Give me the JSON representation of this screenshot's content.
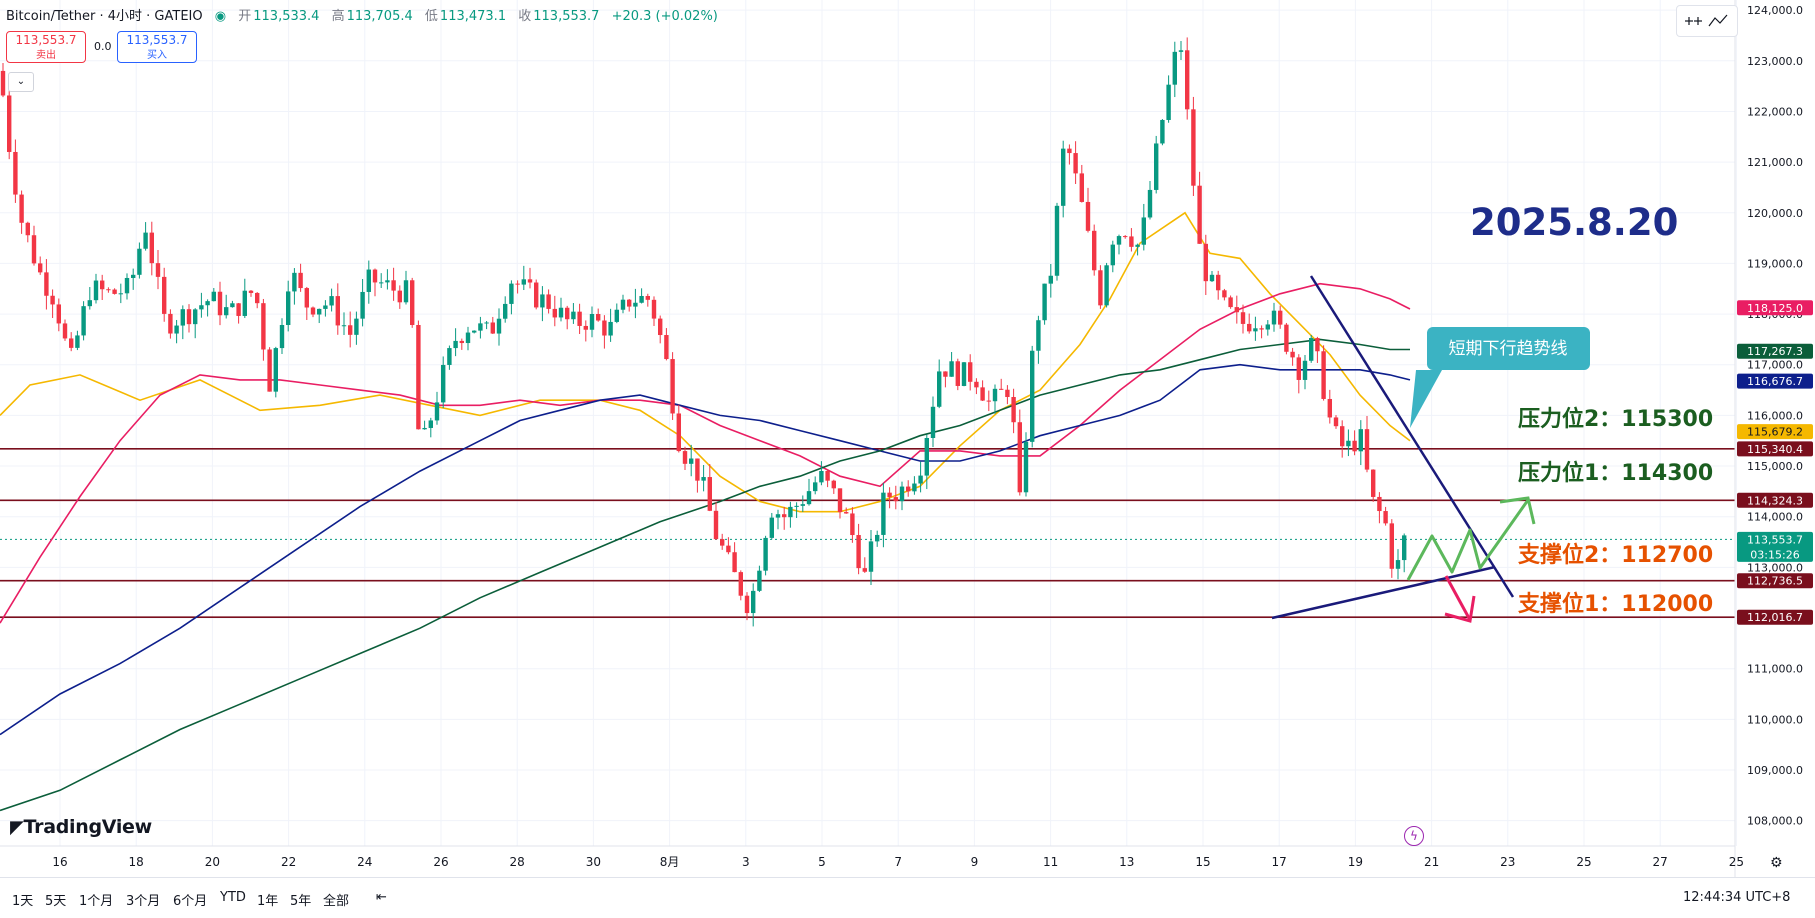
{
  "header": {
    "symbol": "Bitcoin/Tether · 4小时 · GATEIO",
    "open_label": "开",
    "open": "113,533.4",
    "high_label": "高",
    "high": "113,705.4",
    "low_label": "低",
    "low": "113,473.1",
    "close_label": "收",
    "close": "113,553.7",
    "change": "+20.3 (+0.02%)"
  },
  "trade": {
    "sell_price": "113,553.7",
    "sell_label": "卖出",
    "spread": "0.0",
    "buy_price": "113,553.7",
    "buy_label": "买入"
  },
  "branding": {
    "logo_text": "TradingView"
  },
  "timeframes": [
    "1天",
    "5天",
    "1个月",
    "3个月",
    "6个月",
    "YTD",
    "1年",
    "5年",
    "全部"
  ],
  "footer_time": "12:44:34 UTC+8",
  "colors": {
    "up": "#089981",
    "down": "#f23645",
    "ma_yellow": "#f5b800",
    "ma_red": "#e91e63",
    "ma_blue": "#0d1f8c",
    "ma_green": "#0b5e3a",
    "hline": "#7a0f1d",
    "trend": "#1a1a7a",
    "accent_title": "#1e2d8a",
    "resistance_text": "#1b5e20",
    "support_text": "#e65100",
    "callout": "#3bb3c3"
  },
  "chart_data": {
    "type": "candlestick",
    "y_axis": {
      "min": 107500,
      "max": 124200,
      "tick_labels": [
        "108,000.0",
        "109,000.0",
        "110,000.0",
        "111,000.0",
        "112,000.0",
        "113,000.0",
        "114,000.0",
        "115,000.0",
        "116,000.0",
        "117,000.0",
        "118,000.0",
        "119,000.0",
        "120,000.0",
        "121,000.0",
        "122,000.0",
        "123,000.0",
        "124,000.0"
      ],
      "tick_values": [
        108000,
        109000,
        110000,
        111000,
        112000,
        113000,
        114000,
        115000,
        116000,
        117000,
        118000,
        119000,
        120000,
        121000,
        122000,
        123000,
        124000
      ]
    },
    "x_axis": {
      "tick_labels": [
        "16",
        "18",
        "20",
        "22",
        "24",
        "26",
        "28",
        "30",
        "8月",
        "3",
        "5",
        "7",
        "9",
        "11",
        "13",
        "15",
        "17",
        "19",
        "21",
        "23",
        "25",
        "27",
        "25"
      ]
    },
    "title_annotation": "2025.8.20",
    "price_labels": [
      {
        "value": 118125.0,
        "text": "118,125.0",
        "color": "#e91e63"
      },
      {
        "value": 117267.3,
        "text": "117,267.3",
        "color": "#0b5e3a"
      },
      {
        "value": 116676.7,
        "text": "116,676.7",
        "color": "#0d1f8c"
      },
      {
        "value": 115679.2,
        "text": "115,679.2",
        "color": "#f5b800"
      },
      {
        "value": 115340.4,
        "text": "115,340.4",
        "color": "#7a0f1d"
      },
      {
        "value": 114324.3,
        "text": "114,324.3",
        "color": "#7a0f1d"
      },
      {
        "value": 113553.7,
        "text": "113,553.7",
        "color": "#089981"
      },
      {
        "value": 112736.5,
        "text": "112,736.5",
        "color": "#7a0f1d"
      },
      {
        "value": 112016.7,
        "text": "112,016.7",
        "color": "#7a0f1d"
      }
    ],
    "countdown": "03:15:26",
    "horizontal_levels": [
      115340.4,
      114324.3,
      112736.5,
      112016.7
    ],
    "level_annotations": [
      {
        "text": "压力位2：115300",
        "value": 115300,
        "kind": "resistance"
      },
      {
        "text": "压力位1：114300",
        "value": 114300,
        "kind": "resistance"
      },
      {
        "text": "支撑位2：112700",
        "value": 112700,
        "kind": "support"
      },
      {
        "text": "支撑位1：112000",
        "value": 112000,
        "kind": "support"
      }
    ],
    "callout_text": "短期下行趋势线",
    "ma_series": [
      {
        "color": "#f5b800",
        "points": [
          [
            0,
            116000
          ],
          [
            30,
            116600
          ],
          [
            80,
            116800
          ],
          [
            140,
            116300
          ],
          [
            200,
            116700
          ],
          [
            260,
            116100
          ],
          [
            320,
            116200
          ],
          [
            380,
            116400
          ],
          [
            430,
            116200
          ],
          [
            480,
            116000
          ],
          [
            540,
            116300
          ],
          [
            600,
            116300
          ],
          [
            640,
            116100
          ],
          [
            680,
            115600
          ],
          [
            720,
            114800
          ],
          [
            760,
            114300
          ],
          [
            800,
            114100
          ],
          [
            840,
            114100
          ],
          [
            880,
            114300
          ],
          [
            920,
            114600
          ],
          [
            960,
            115400
          ],
          [
            1000,
            116100
          ],
          [
            1040,
            116500
          ],
          [
            1080,
            117400
          ],
          [
            1110,
            118300
          ],
          [
            1140,
            119400
          ],
          [
            1170,
            119800
          ],
          [
            1185,
            120000
          ],
          [
            1210,
            119200
          ],
          [
            1240,
            119100
          ],
          [
            1270,
            118400
          ],
          [
            1300,
            117800
          ],
          [
            1330,
            117200
          ],
          [
            1360,
            116400
          ],
          [
            1390,
            115800
          ],
          [
            1410,
            115500
          ]
        ]
      },
      {
        "color": "#e91e63",
        "points": [
          [
            0,
            111900
          ],
          [
            40,
            113200
          ],
          [
            80,
            114400
          ],
          [
            120,
            115500
          ],
          [
            160,
            116400
          ],
          [
            200,
            116800
          ],
          [
            240,
            116700
          ],
          [
            280,
            116700
          ],
          [
            320,
            116600
          ],
          [
            360,
            116500
          ],
          [
            400,
            116400
          ],
          [
            440,
            116200
          ],
          [
            480,
            116200
          ],
          [
            520,
            116300
          ],
          [
            560,
            116200
          ],
          [
            600,
            116300
          ],
          [
            640,
            116300
          ],
          [
            680,
            116200
          ],
          [
            720,
            115800
          ],
          [
            760,
            115500
          ],
          [
            800,
            115200
          ],
          [
            840,
            114800
          ],
          [
            880,
            114600
          ],
          [
            920,
            115300
          ],
          [
            960,
            115300
          ],
          [
            1000,
            115200
          ],
          [
            1040,
            115200
          ],
          [
            1080,
            115800
          ],
          [
            1120,
            116500
          ],
          [
            1160,
            117100
          ],
          [
            1200,
            117700
          ],
          [
            1240,
            118100
          ],
          [
            1280,
            118400
          ],
          [
            1320,
            118600
          ],
          [
            1360,
            118500
          ],
          [
            1390,
            118300
          ],
          [
            1410,
            118100
          ]
        ]
      },
      {
        "color": "#0d1f8c",
        "points": [
          [
            0,
            109700
          ],
          [
            60,
            110500
          ],
          [
            120,
            111100
          ],
          [
            180,
            111800
          ],
          [
            240,
            112600
          ],
          [
            300,
            113400
          ],
          [
            360,
            114200
          ],
          [
            420,
            114900
          ],
          [
            480,
            115500
          ],
          [
            520,
            115900
          ],
          [
            560,
            116100
          ],
          [
            600,
            116300
          ],
          [
            640,
            116400
          ],
          [
            680,
            116200
          ],
          [
            720,
            116000
          ],
          [
            760,
            115900
          ],
          [
            800,
            115700
          ],
          [
            840,
            115500
          ],
          [
            880,
            115300
          ],
          [
            920,
            115100
          ],
          [
            960,
            115100
          ],
          [
            1000,
            115300
          ],
          [
            1040,
            115600
          ],
          [
            1080,
            115800
          ],
          [
            1120,
            116000
          ],
          [
            1160,
            116300
          ],
          [
            1200,
            116900
          ],
          [
            1240,
            117000
          ],
          [
            1280,
            116900
          ],
          [
            1320,
            116900
          ],
          [
            1360,
            116900
          ],
          [
            1390,
            116800
          ],
          [
            1410,
            116700
          ]
        ]
      },
      {
        "color": "#0b5e3a",
        "points": [
          [
            0,
            108200
          ],
          [
            60,
            108600
          ],
          [
            120,
            109200
          ],
          [
            180,
            109800
          ],
          [
            240,
            110300
          ],
          [
            300,
            110800
          ],
          [
            360,
            111300
          ],
          [
            420,
            111800
          ],
          [
            480,
            112400
          ],
          [
            540,
            112900
          ],
          [
            600,
            113400
          ],
          [
            660,
            113900
          ],
          [
            720,
            114300
          ],
          [
            760,
            114600
          ],
          [
            800,
            114800
          ],
          [
            840,
            115100
          ],
          [
            880,
            115300
          ],
          [
            920,
            115600
          ],
          [
            960,
            115800
          ],
          [
            1000,
            116100
          ],
          [
            1040,
            116400
          ],
          [
            1080,
            116600
          ],
          [
            1120,
            116800
          ],
          [
            1160,
            116900
          ],
          [
            1200,
            117100
          ],
          [
            1240,
            117300
          ],
          [
            1280,
            117400
          ],
          [
            1320,
            117500
          ],
          [
            1360,
            117400
          ],
          [
            1390,
            117300
          ],
          [
            1410,
            117300
          ]
        ]
      }
    ],
    "candle_path": [
      [
        0,
        122800
      ],
      [
        10,
        121200
      ],
      [
        22,
        119800
      ],
      [
        40,
        118800
      ],
      [
        55,
        118300
      ],
      [
        70,
        117000
      ],
      [
        90,
        118500
      ],
      [
        110,
        118400
      ],
      [
        130,
        118500
      ],
      [
        145,
        119800
      ],
      [
        165,
        117800
      ],
      [
        185,
        118000
      ],
      [
        210,
        118300
      ],
      [
        230,
        118000
      ],
      [
        255,
        118500
      ],
      [
        270,
        116600
      ],
      [
        290,
        118900
      ],
      [
        305,
        118200
      ],
      [
        330,
        118200
      ],
      [
        350,
        117600
      ],
      [
        370,
        118700
      ],
      [
        392,
        118500
      ],
      [
        410,
        118400
      ],
      [
        420,
        115200
      ],
      [
        440,
        116600
      ],
      [
        455,
        117500
      ],
      [
        470,
        117800
      ],
      [
        490,
        117600
      ],
      [
        510,
        118700
      ],
      [
        530,
        118400
      ],
      [
        550,
        118200
      ],
      [
        570,
        117800
      ],
      [
        590,
        117900
      ],
      [
        610,
        117700
      ],
      [
        630,
        118300
      ],
      [
        650,
        118300
      ],
      [
        665,
        117200
      ],
      [
        680,
        115400
      ],
      [
        700,
        114800
      ],
      [
        715,
        113700
      ],
      [
        730,
        113000
      ],
      [
        750,
        112200
      ],
      [
        770,
        114200
      ],
      [
        785,
        114000
      ],
      [
        800,
        114300
      ],
      [
        820,
        114800
      ],
      [
        835,
        114400
      ],
      [
        850,
        113800
      ],
      [
        865,
        112800
      ],
      [
        885,
        114400
      ],
      [
        900,
        114500
      ],
      [
        920,
        115000
      ],
      [
        940,
        117000
      ],
      [
        960,
        116800
      ],
      [
        975,
        116800
      ],
      [
        990,
        116200
      ],
      [
        1010,
        116600
      ],
      [
        1020,
        114200
      ],
      [
        1035,
        117800
      ],
      [
        1050,
        118700
      ],
      [
        1065,
        121500
      ],
      [
        1080,
        120300
      ],
      [
        1100,
        118300
      ],
      [
        1110,
        119500
      ],
      [
        1125,
        119700
      ],
      [
        1140,
        119300
      ],
      [
        1160,
        121600
      ],
      [
        1170,
        122600
      ],
      [
        1180,
        123500
      ],
      [
        1190,
        121300
      ],
      [
        1200,
        119200
      ],
      [
        1210,
        118600
      ],
      [
        1225,
        118100
      ],
      [
        1240,
        117800
      ],
      [
        1255,
        117900
      ],
      [
        1270,
        118000
      ],
      [
        1285,
        117500
      ],
      [
        1300,
        116900
      ],
      [
        1310,
        117400
      ],
      [
        1320,
        116900
      ],
      [
        1332,
        115700
      ],
      [
        1345,
        115300
      ],
      [
        1360,
        115600
      ],
      [
        1372,
        114300
      ],
      [
        1385,
        113900
      ],
      [
        1395,
        112800
      ],
      [
        1405,
        113600
      ]
    ]
  }
}
